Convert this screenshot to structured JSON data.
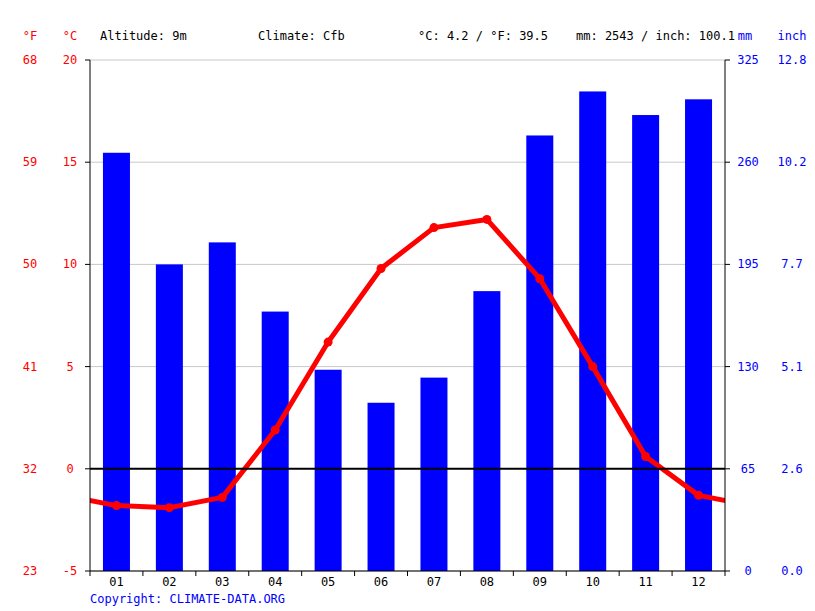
{
  "chart_data": {
    "type": "bar",
    "ylabel": "°C",
    "ylabel_f": "°F",
    "y2label": "mm",
    "y2label_inch": "inch",
    "annotations": [
      "Altitude: 9m",
      "Climate: Cfb",
      "°C: 4.2 / °F: 39.5",
      "mm: 2543 / inch: 100.1"
    ],
    "source": "Copyright: CLIMATE-DATA.ORG",
    "categories": [
      "01",
      "02",
      "03",
      "04",
      "05",
      "06",
      "07",
      "08",
      "09",
      "10",
      "11",
      "12"
    ],
    "series": [
      {
        "type": "bar",
        "color": "#0000ff",
        "axis": "y2",
        "values": [
          266,
          195,
          209,
          165,
          128,
          107,
          123,
          178,
          277,
          305,
          290,
          300
        ]
      },
      {
        "type": "line",
        "color": "#ff0000",
        "marker": "circle",
        "values": [
          -1.8,
          -1.9,
          -1.4,
          1.9,
          6.2,
          9.8,
          11.8,
          12.2,
          9.3,
          5.0,
          0.6,
          -1.3
        ]
      }
    ],
    "ylim": [
      -5,
      20
    ],
    "yticks": [
      -5,
      0,
      5,
      10,
      15,
      20
    ],
    "yticks_f": [
      23,
      32,
      41,
      50,
      59,
      68
    ],
    "y2lim": [
      0,
      325
    ],
    "y2ticks": [
      0,
      65,
      130,
      195,
      260,
      325
    ],
    "y2ticks_inch": [
      "0.0",
      "2.6",
      "5.1",
      "7.7",
      "10.2",
      "12.8"
    ],
    "grid": true
  }
}
